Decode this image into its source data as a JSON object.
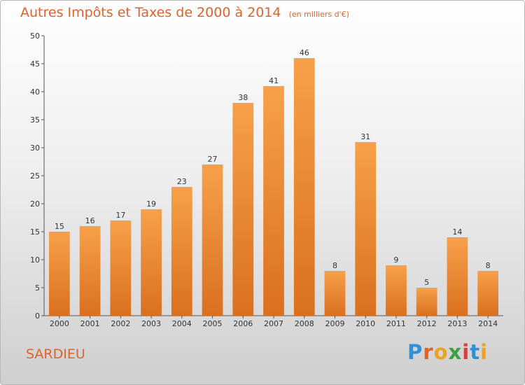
{
  "chart_data": {
    "type": "bar",
    "title": "Autres Impôts et Taxes de 2000 à 2014",
    "subtitle": "(en milliers d'€)",
    "categories": [
      "2000",
      "2001",
      "2002",
      "2003",
      "2004",
      "2005",
      "2006",
      "2007",
      "2008",
      "2009",
      "2010",
      "2011",
      "2012",
      "2013",
      "2014"
    ],
    "values": [
      15,
      16,
      17,
      19,
      23,
      27,
      38,
      41,
      46,
      8,
      31,
      9,
      5,
      14,
      8
    ],
    "ylim": [
      0,
      50
    ],
    "yticks": [
      0,
      5,
      10,
      15,
      20,
      25,
      30,
      35,
      40,
      45,
      50
    ],
    "grid": false,
    "colors": {
      "bar_light": "#f7a04a",
      "bar_dark": "#d9701f",
      "title": "#e0622a"
    }
  },
  "footer": {
    "place": "SARDIEU",
    "brand_letters": [
      {
        "ch": "P",
        "color": "#2f8fd8"
      },
      {
        "ch": "r",
        "color": "#e0622a"
      },
      {
        "ch": "o",
        "color": "#f0a020"
      },
      {
        "ch": "x",
        "color": "#3aa040"
      },
      {
        "ch": "i",
        "color": "#e03a3a"
      },
      {
        "ch": "t",
        "color": "#2f8fd8"
      },
      {
        "ch": "i",
        "color": "#f0a020"
      }
    ]
  }
}
